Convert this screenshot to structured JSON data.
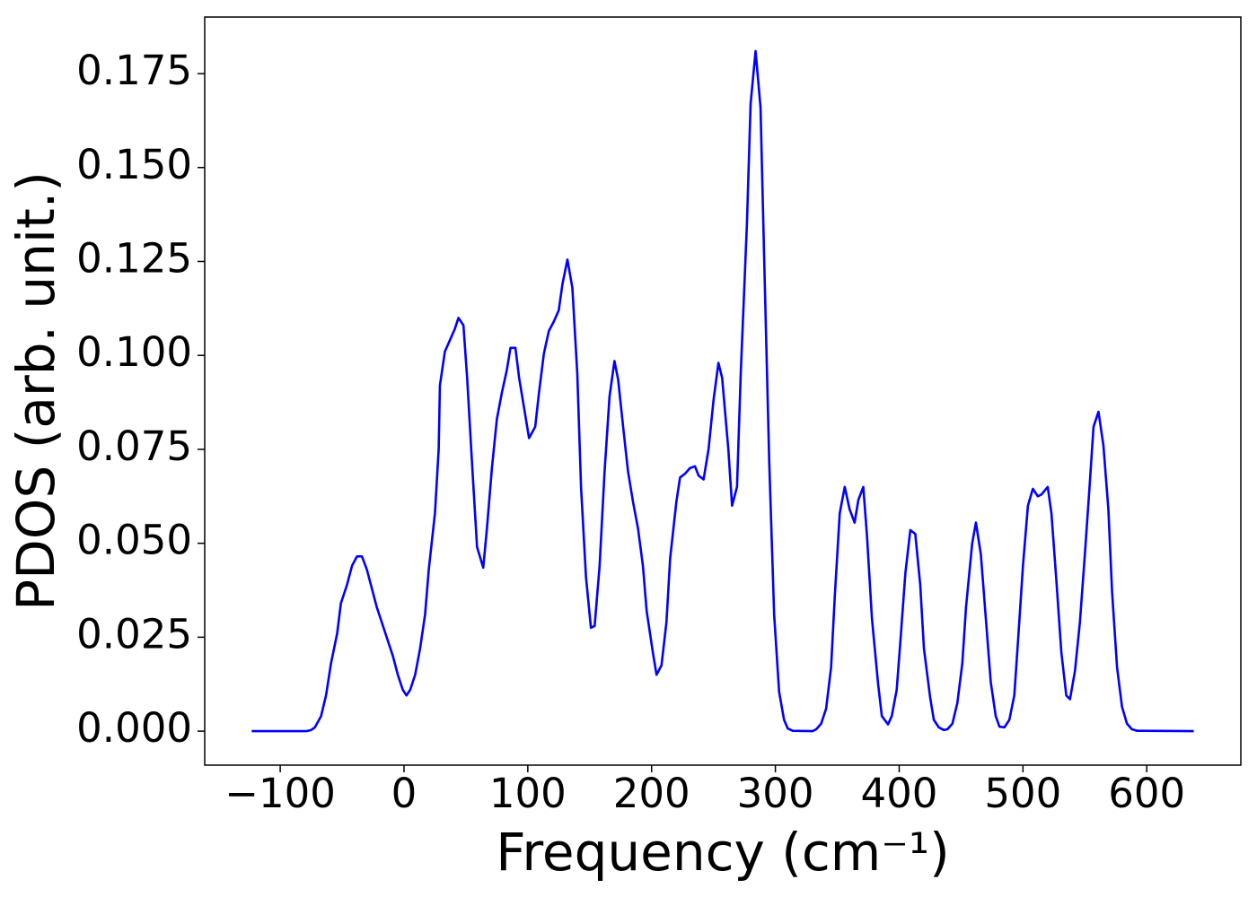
{
  "chart_data": {
    "type": "line",
    "xlabel": "Frequency (cm⁻¹)",
    "ylabel": "PDOS (arb. unit.)",
    "xlim": [
      -161,
      676
    ],
    "ylim": [
      -0.00905,
      0.19005
    ],
    "xticks": [
      {
        "value": -100,
        "label": "−100"
      },
      0,
      100,
      200,
      300,
      400,
      500,
      600
    ],
    "yticks": [
      {
        "value": 0,
        "label": "0.000"
      },
      {
        "value": 0.025,
        "label": "0.025"
      },
      {
        "value": 0.05,
        "label": "0.050"
      },
      {
        "value": 0.075,
        "label": "0.075"
      },
      {
        "value": 0.1,
        "label": "0.100"
      },
      {
        "value": 0.125,
        "label": "0.125"
      },
      {
        "value": 0.15,
        "label": "0.150"
      },
      {
        "value": 0.175,
        "label": "0.175"
      }
    ],
    "grid": false,
    "series": [
      {
        "color": "#0000ff",
        "x": [
          -123,
          -79,
          -75,
          -72,
          -67,
          -63,
          -59,
          -54,
          -51,
          -46,
          -42,
          -38,
          -34,
          -30,
          -26,
          -22,
          -18,
          -14,
          -9,
          -5,
          -1,
          2,
          5,
          9,
          13,
          17,
          20,
          25,
          28,
          29,
          33,
          37,
          41,
          44,
          48,
          51,
          55,
          59,
          64,
          67,
          71,
          75,
          79,
          83,
          86,
          90,
          93,
          98,
          101,
          106,
          109,
          113,
          117,
          121,
          125,
          128,
          132,
          136,
          140,
          143,
          147,
          151,
          154,
          158,
          162,
          166,
          170,
          173,
          177,
          181,
          185,
          189,
          193,
          196,
          201,
          204,
          208,
          212,
          215,
          220,
          223,
          227,
          231,
          235,
          238,
          242,
          246,
          250,
          254,
          257,
          262,
          265,
          269,
          272,
          277,
          280,
          284,
          288,
          291,
          295,
          299,
          303,
          307,
          310,
          314,
          330,
          333,
          337,
          341,
          345,
          348,
          352,
          356,
          360,
          364,
          367,
          371,
          374,
          378,
          383,
          386,
          391,
          394,
          398,
          401,
          405,
          409,
          413,
          417,
          420,
          425,
          428,
          432,
          436,
          439,
          443,
          447,
          451,
          454,
          459,
          462,
          466,
          470,
          474,
          478,
          481,
          485,
          489,
          493,
          496,
          500,
          504,
          508,
          512,
          515,
          520,
          523,
          527,
          531,
          535,
          538,
          542,
          546,
          550,
          554,
          557,
          561,
          565,
          569,
          572,
          576,
          580,
          584,
          588,
          592,
          638
        ],
        "values": [
          0,
          0,
          0.0003,
          0.001,
          0.004,
          0.0095,
          0.018,
          0.026,
          0.034,
          0.039,
          0.044,
          0.0465,
          0.0465,
          0.043,
          0.038,
          0.033,
          0.029,
          0.025,
          0.02,
          0.015,
          0.011,
          0.0095,
          0.011,
          0.015,
          0.022,
          0.031,
          0.043,
          0.058,
          0.075,
          0.092,
          0.101,
          0.104,
          0.107,
          0.11,
          0.108,
          0.094,
          0.071,
          0.049,
          0.0435,
          0.054,
          0.07,
          0.083,
          0.09,
          0.096,
          0.102,
          0.102,
          0.094,
          0.084,
          0.078,
          0.081,
          0.09,
          0.1005,
          0.1065,
          0.109,
          0.112,
          0.119,
          0.1255,
          0.118,
          0.095,
          0.065,
          0.041,
          0.0275,
          0.028,
          0.044,
          0.069,
          0.089,
          0.0985,
          0.0935,
          0.081,
          0.069,
          0.061,
          0.054,
          0.044,
          0.032,
          0.021,
          0.015,
          0.0175,
          0.029,
          0.046,
          0.061,
          0.0675,
          0.0685,
          0.07,
          0.0705,
          0.068,
          0.067,
          0.075,
          0.088,
          0.098,
          0.094,
          0.075,
          0.06,
          0.065,
          0.095,
          0.135,
          0.167,
          0.181,
          0.166,
          0.125,
          0.072,
          0.031,
          0.0105,
          0.003,
          0.0007,
          0.0001,
          0,
          0.0005,
          0.002,
          0.006,
          0.017,
          0.036,
          0.058,
          0.065,
          0.059,
          0.0555,
          0.0615,
          0.065,
          0.052,
          0.03,
          0.0125,
          0.004,
          0.0018,
          0.004,
          0.011,
          0.024,
          0.042,
          0.0535,
          0.0525,
          0.039,
          0.022,
          0.009,
          0.003,
          0.001,
          0.0003,
          0.0005,
          0.002,
          0.0075,
          0.018,
          0.033,
          0.05,
          0.0555,
          0.047,
          0.03,
          0.013,
          0.004,
          0.0012,
          0.001,
          0.003,
          0.0095,
          0.024,
          0.044,
          0.06,
          0.0645,
          0.0625,
          0.063,
          0.065,
          0.058,
          0.04,
          0.021,
          0.0095,
          0.0085,
          0.016,
          0.029,
          0.047,
          0.066,
          0.081,
          0.085,
          0.076,
          0.059,
          0.037,
          0.017,
          0.0065,
          0.002,
          0.0005,
          0.0001,
          0
        ]
      }
    ]
  }
}
